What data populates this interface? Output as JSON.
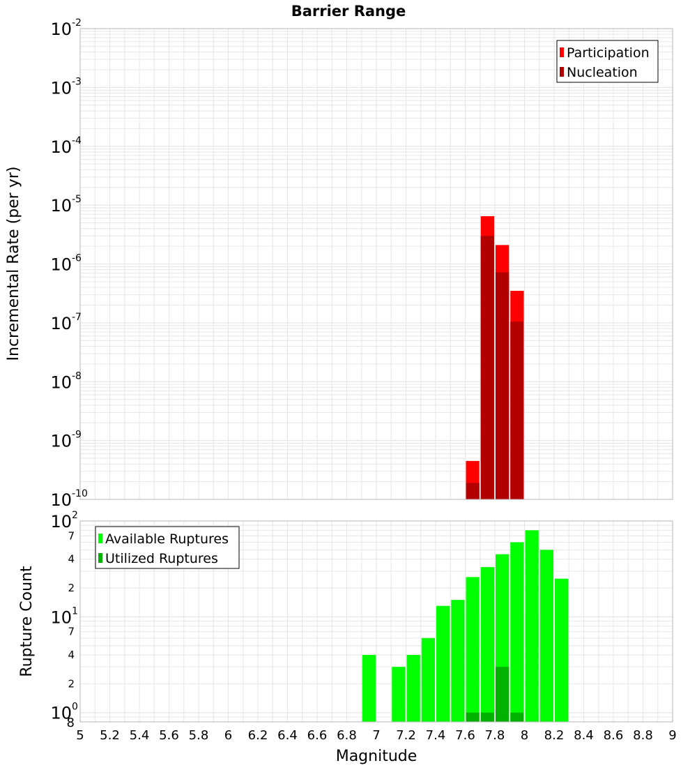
{
  "chart_data": {
    "title": "Barrier Range",
    "xlabel": "Magnitude",
    "x_ticks": [
      "5",
      "5.2",
      "5.4",
      "5.6",
      "5.8",
      "6",
      "6.2",
      "6.4",
      "6.6",
      "6.8",
      "7",
      "7.2",
      "7.4",
      "7.6",
      "7.8",
      "8",
      "8.2",
      "8.4",
      "8.6",
      "8.8",
      "9"
    ],
    "xlim": [
      5,
      9
    ],
    "bin_width": 0.1,
    "colors": {
      "participation": "#ff0000",
      "nucleation": "#b20000",
      "available": "#00ff00",
      "utilized": "#00b200",
      "grid": "#e6e6e6",
      "axis_border": "#b4b4b4"
    },
    "panels": [
      {
        "id": "rate",
        "type": "bar",
        "scale": "log",
        "ylabel": "Incremental Rate (per yr)",
        "ylim": [
          1e-10,
          0.01
        ],
        "y_ticks": [
          {
            "base": "10",
            "exp": "-2"
          },
          {
            "base": "10",
            "exp": "-3"
          },
          {
            "base": "10",
            "exp": "-4"
          },
          {
            "base": "10",
            "exp": "-5"
          },
          {
            "base": "10",
            "exp": "-6"
          },
          {
            "base": "10",
            "exp": "-7"
          },
          {
            "base": "10",
            "exp": "-8"
          },
          {
            "base": "10",
            "exp": "-9"
          },
          {
            "base": "10",
            "exp": "-10"
          }
        ],
        "legend": {
          "position": "top-right",
          "entries": [
            "Participation",
            "Nucleation"
          ]
        },
        "series": [
          {
            "name": "Participation",
            "x": [
              7.65,
              7.75,
              7.85,
              7.95
            ],
            "values": [
              4.5e-10,
              6.5e-06,
              2.1e-06,
              3.5e-07
            ]
          },
          {
            "name": "Nucleation",
            "x": [
              7.65,
              7.75,
              7.85,
              7.95
            ],
            "values": [
              1.9e-10,
              3e-06,
              7.2e-07,
              1.05e-07
            ]
          }
        ]
      },
      {
        "id": "count",
        "type": "bar",
        "scale": "log",
        "ylabel": "Rupture Count",
        "ylim": [
          0.8,
          100
        ],
        "y_major_ticks": [
          {
            "base": "10",
            "exp": "2"
          },
          {
            "base": "10",
            "exp": "1"
          },
          {
            "base": "10",
            "exp": "0"
          }
        ],
        "y_minor_labels": [
          "7",
          "4",
          "2",
          "7",
          "4",
          "2",
          "8"
        ],
        "legend": {
          "position": "top-left",
          "entries": [
            "Available Ruptures",
            "Utilized Ruptures"
          ]
        },
        "series": [
          {
            "name": "Available Ruptures",
            "x": [
              6.95,
              7.15,
              7.25,
              7.35,
              7.45,
              7.55,
              7.65,
              7.75,
              7.85,
              7.95,
              8.05,
              8.15,
              8.25
            ],
            "values": [
              4,
              3,
              4,
              6,
              13,
              15,
              26,
              33,
              45,
              60,
              80,
              50,
              25
            ]
          },
          {
            "name": "Utilized Ruptures",
            "x": [
              7.65,
              7.75,
              7.85,
              7.95
            ],
            "values": [
              1,
              1,
              3,
              1
            ]
          }
        ]
      }
    ]
  }
}
